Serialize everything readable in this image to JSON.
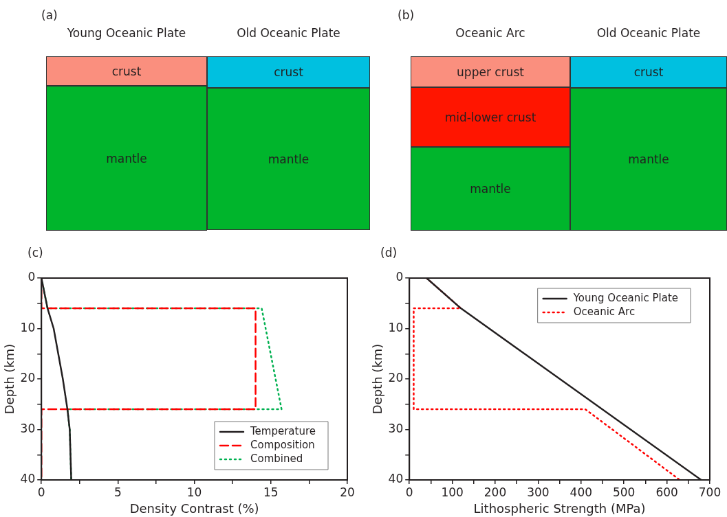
{
  "chart_data": [
    {
      "type": "other",
      "title": "(a)",
      "annotations": [
        "Young Oceanic Plate",
        "Old Oceanic Plate",
        "crust",
        "crust",
        "mantle",
        "mantle"
      ]
    },
    {
      "type": "other",
      "title": "(b)",
      "annotations": [
        "Oceanic Arc",
        "Old Oceanic Plate",
        "upper crust",
        "crust",
        "mid-lower crust",
        "mantle",
        "mantle"
      ]
    },
    {
      "type": "line",
      "title": "(c)",
      "xlabel": "Density Contrast (%)",
      "ylabel": "Depth (km)",
      "xlim": [
        0,
        20
      ],
      "xticks": [
        0,
        {
          "value": 2.5,
          "label": null
        },
        5,
        {
          "value": 7.5,
          "label": null
        },
        10,
        {
          "value": 12.5,
          "label": null
        },
        15,
        {
          "value": 17.5,
          "label": null
        },
        20
      ],
      "ylim": [
        40,
        0
      ],
      "yticks": [
        0,
        {
          "value": 5,
          "label": null
        },
        10,
        {
          "value": 15,
          "label": null
        },
        20,
        {
          "value": 25,
          "label": null
        },
        30,
        {
          "value": 35,
          "label": null
        },
        40
      ],
      "grid": false,
      "legend": "bottom right",
      "series": [
        {
          "name": "Temperature",
          "color": "#231f20",
          "line_style": "solid",
          "x": [
            0,
            0.4,
            0.8,
            1.1,
            1.4,
            1.7,
            1.85,
            1.95
          ],
          "values": [
            0,
            6,
            10,
            15,
            20,
            26,
            30,
            40
          ]
        },
        {
          "name": "Composition",
          "color": "#ff0000",
          "line_style": "dashed",
          "x": [
            0,
            0,
            14,
            14,
            0,
            0
          ],
          "values": [
            0,
            6,
            6,
            26,
            26,
            40
          ]
        },
        {
          "name": "Combined",
          "color": "#00b050",
          "line_style": "dotted",
          "x": [
            0,
            0.4,
            14.4,
            15.7,
            1.7,
            1.85,
            1.95
          ],
          "values": [
            0,
            6,
            6,
            26,
            26,
            30,
            40
          ]
        }
      ]
    },
    {
      "type": "line",
      "title": "(d)",
      "xlabel": "Lithospheric Strength (MPa)",
      "ylabel": "Depth (km)",
      "xlim": [
        0,
        700
      ],
      "xticks": [
        0,
        {
          "value": 50,
          "label": null
        },
        100,
        {
          "value": 150,
          "label": null
        },
        200,
        {
          "value": 250,
          "label": null
        },
        300,
        {
          "value": 350,
          "label": null
        },
        400,
        {
          "value": 450,
          "label": null
        },
        500,
        {
          "value": 550,
          "label": null
        },
        600,
        {
          "value": 650,
          "label": null
        },
        700
      ],
      "ylim": [
        40,
        0
      ],
      "yticks": [
        0,
        {
          "value": 5,
          "label": null
        },
        10,
        {
          "value": 15,
          "label": null
        },
        20,
        {
          "value": 25,
          "label": null
        },
        30,
        {
          "value": 35,
          "label": null
        },
        40
      ],
      "grid": false,
      "legend": "top right",
      "series": [
        {
          "name": "Young Oceanic Plate",
          "color": "#231f20",
          "line_style": "solid",
          "x": [
            40,
            120,
            680
          ],
          "values": [
            0,
            6,
            40
          ]
        },
        {
          "name": "Oceanic Arc",
          "color": "#ff0000",
          "line_style": "dotted",
          "x": [
            40,
            120,
            10,
            10,
            410,
            630
          ],
          "values": [
            0,
            6,
            6,
            26,
            26,
            40
          ]
        }
      ]
    }
  ]
}
